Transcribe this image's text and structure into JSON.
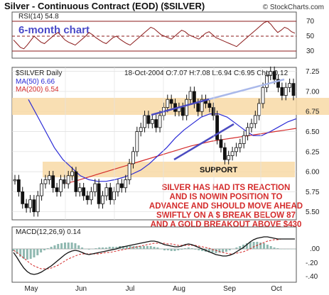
{
  "header": {
    "title": "Silver - Continuous Contract (EOD) ($SILVER)",
    "source": "© StockCharts.com"
  },
  "rsi": {
    "label": "RSI(14) 54.8",
    "ticks": [
      "70",
      "50",
      "30"
    ],
    "annotation": "6-month chart",
    "values": [
      45,
      40,
      35,
      33,
      38,
      44,
      50,
      46,
      42,
      40,
      44,
      48,
      52,
      55,
      50,
      45,
      42,
      40,
      38,
      42,
      46,
      50,
      55,
      52,
      48,
      45,
      42,
      40,
      44,
      48,
      50,
      46,
      43,
      40,
      38,
      42,
      46,
      50,
      54,
      58,
      62,
      60,
      56,
      52,
      50,
      48,
      46,
      50,
      54,
      58,
      56,
      52,
      50,
      48,
      46,
      50,
      54,
      56,
      52,
      48,
      46,
      44,
      42,
      40,
      38,
      36,
      40,
      44,
      48,
      52,
      56,
      60,
      64,
      68,
      70,
      66,
      60,
      55,
      58,
      62,
      60,
      56,
      54
    ]
  },
  "price": {
    "symbol_label": "$SILVER Daily",
    "info": "18-Oct-2004  O:7.07  H:7.08  L:6.94  C:6.95  Chg:-0.12",
    "ma50_label": "MA(50) 6.66",
    "ma200_label": "MA(200) 6.54",
    "ma50_color": "#2b2bd6",
    "ma200_color": "#d42b2b",
    "band_color": "#f8d9a6",
    "support_label": "SUPPORT",
    "annotation_lines": [
      "SILVER HAS HAD ITS REACTION",
      "AND IS NOWIN POSITION TO",
      "ADVANCE AND SHOULD MOVE AHEAD",
      "SWIFTLY ON A $ BREAK BELOW 87",
      "AND A GOLD BREAKOUT ABOVE  $430"
    ],
    "annotation_color": "#d42b2b"
  },
  "macd": {
    "label": "MACD(12,26,9) 0.14",
    "ticks": [
      ".00",
      "-.20",
      "-.40"
    ],
    "macd": [
      -0.05,
      -0.12,
      -0.2,
      -0.27,
      -0.32,
      -0.35,
      -0.36,
      -0.35,
      -0.33,
      -0.3,
      -0.27,
      -0.24,
      -0.2,
      -0.16,
      -0.12,
      -0.08,
      -0.05,
      -0.03,
      -0.02,
      -0.03,
      -0.05,
      -0.07,
      -0.08,
      -0.07,
      -0.06,
      -0.05,
      -0.04,
      -0.03,
      -0.02,
      -0.01,
      0.0,
      0.02,
      0.03,
      0.04,
      0.05,
      0.06,
      0.07,
      0.08,
      0.09,
      0.1,
      0.11,
      0.11,
      0.1,
      0.08,
      0.06,
      0.05,
      0.04,
      0.03,
      0.03,
      0.04,
      0.06,
      0.07,
      0.06,
      0.04,
      0.02,
      0.0,
      -0.02,
      -0.04,
      -0.06,
      -0.08,
      -0.09,
      -0.1,
      -0.1,
      -0.09,
      -0.07,
      -0.04,
      -0.01,
      0.02,
      0.06,
      0.1,
      0.13,
      0.15,
      0.16,
      0.17,
      0.17,
      0.16,
      0.15,
      0.14,
      0.14,
      0.14,
      0.14,
      0.14,
      0.14
    ],
    "signal": [
      -0.02,
      -0.05,
      -0.09,
      -0.13,
      -0.17,
      -0.21,
      -0.24,
      -0.26,
      -0.28,
      -0.28,
      -0.28,
      -0.27,
      -0.25,
      -0.23,
      -0.2,
      -0.17,
      -0.14,
      -0.12,
      -0.1,
      -0.08,
      -0.07,
      -0.07,
      -0.07,
      -0.07,
      -0.07,
      -0.07,
      -0.06,
      -0.05,
      -0.05,
      -0.04,
      -0.03,
      -0.02,
      -0.01,
      0.0,
      0.01,
      0.02,
      0.03,
      0.04,
      0.05,
      0.06,
      0.07,
      0.08,
      0.08,
      0.08,
      0.08,
      0.07,
      0.07,
      0.06,
      0.05,
      0.05,
      0.05,
      0.05,
      0.05,
      0.05,
      0.04,
      0.03,
      0.02,
      0.01,
      -0.01,
      -0.02,
      -0.04,
      -0.05,
      -0.06,
      -0.07,
      -0.07,
      -0.06,
      -0.05,
      -0.04,
      -0.02,
      0.0,
      0.03,
      0.05,
      0.07,
      0.09,
      0.11,
      0.12,
      0.13,
      0.13,
      0.14,
      0.14,
      0.14,
      0.14,
      0.14
    ]
  },
  "chart_data": {
    "type": "line",
    "title": "Silver - Continuous Contract (EOD) ($SILVER)",
    "xlabel": "",
    "ylabel": "",
    "x_ticks": [
      "May",
      "Jun",
      "Jul",
      "Aug",
      "Sep",
      "Oct"
    ],
    "y_ticks": [
      "7.25",
      "7.00",
      "6.75",
      "6.50",
      "6.25",
      "6.00",
      "5.75",
      "5.50"
    ],
    "ylim": [
      5.4,
      7.3
    ],
    "grid": true,
    "series": [
      {
        "name": "$SILVER Daily",
        "values": [
          5.9,
          5.75,
          5.6,
          5.55,
          5.65,
          5.5,
          5.7,
          5.85,
          5.9,
          5.95,
          5.8,
          5.75,
          5.9,
          5.85,
          5.95,
          6.0,
          5.75,
          5.8,
          5.7,
          5.65,
          5.75,
          5.85,
          5.6,
          5.7,
          5.8,
          5.65,
          5.75,
          5.85,
          5.8,
          5.9,
          6.1,
          6.25,
          6.5,
          6.55,
          6.7,
          6.6,
          6.65,
          6.55,
          6.7,
          6.8,
          6.9,
          6.85,
          6.75,
          6.8,
          6.7,
          6.9,
          7.0,
          6.85,
          6.75,
          6.9,
          6.85,
          6.8,
          6.7,
          6.4,
          6.3,
          6.15,
          6.2,
          6.25,
          6.3,
          6.35,
          6.45,
          6.55,
          6.6,
          6.7,
          6.85,
          7.05,
          7.2,
          7.25,
          7.15,
          7.05,
          6.95,
          7.05,
          7.1,
          6.95
        ]
      },
      {
        "name": "MA(50) 6.66",
        "values": [
          6.9,
          6.7,
          6.5,
          6.3,
          6.15,
          6.05,
          5.95,
          5.9,
          5.88,
          5.88,
          5.9,
          5.93,
          5.97,
          6.02,
          6.1,
          6.2,
          6.3,
          6.42,
          6.52,
          6.6,
          6.68,
          6.72,
          6.72,
          6.68,
          6.6,
          6.52,
          6.45,
          6.45,
          6.5,
          6.56,
          6.62,
          6.66
        ]
      },
      {
        "name": "MA(200) 6.54",
        "values": [
          5.85,
          5.88,
          5.92,
          5.96,
          6.0,
          6.04,
          6.08,
          6.12,
          6.16,
          6.2,
          6.24,
          6.28,
          6.32,
          6.35,
          6.38,
          6.4,
          6.42,
          6.44,
          6.46,
          6.48,
          6.5,
          6.52,
          6.54
        ]
      }
    ]
  }
}
